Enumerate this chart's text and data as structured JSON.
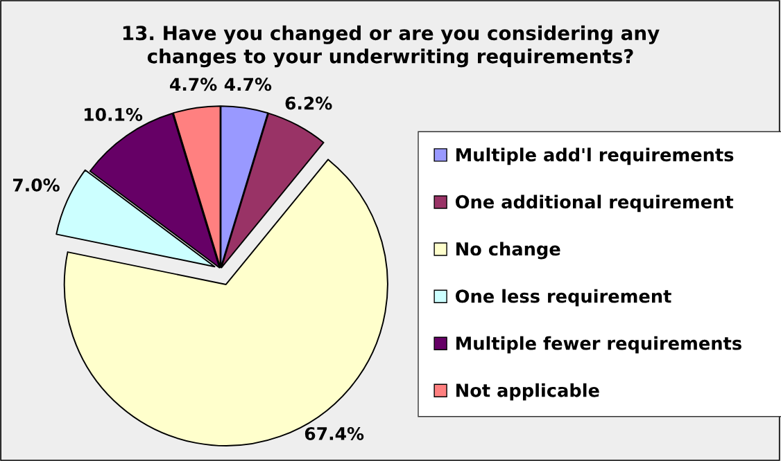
{
  "chart_data": {
    "type": "pie",
    "title": "13. Have you changed or are you considering any\nchanges to your underwriting requirements?",
    "categories": [
      "Multiple add'l requirements",
      "One additional requirement",
      "No change",
      "One less requirement",
      "Multiple fewer requirements",
      "Not applicable"
    ],
    "values": [
      4.7,
      6.2,
      67.4,
      7.0,
      10.1,
      4.7
    ],
    "value_labels": [
      "4.7%",
      "6.2%",
      "67.4%",
      "7.0%",
      "10.1%",
      "4.7%"
    ],
    "colors": [
      "#9999ff",
      "#993366",
      "#ffffcc",
      "#ccffff",
      "#660066",
      "#ff8080"
    ],
    "legend": "right"
  }
}
